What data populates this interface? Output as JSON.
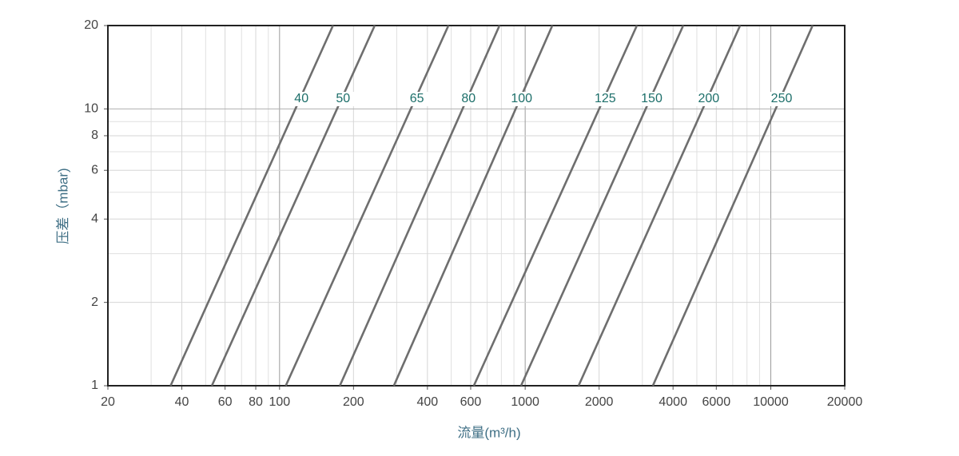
{
  "chart_data": {
    "type": "line",
    "xlabel": "流量(m³/h)",
    "ylabel": "压差（mbar)",
    "xscale": "log",
    "yscale": "log",
    "grid": true,
    "xlim": [
      20,
      20000
    ],
    "ylim": [
      1,
      20
    ],
    "xticks": [
      20,
      40,
      60,
      80,
      100,
      200,
      400,
      600,
      1000,
      2000,
      4000,
      6000,
      10000,
      20000
    ],
    "xminor": [
      30,
      50,
      70,
      90,
      300,
      500,
      700,
      800,
      900,
      3000,
      5000,
      7000,
      8000,
      9000
    ],
    "yticks": [
      1,
      2,
      4,
      6,
      8,
      10,
      20
    ],
    "yminor": [
      3,
      5,
      7,
      9
    ],
    "series": [
      {
        "name": "40",
        "color": "#6e6e6e",
        "x": [
          36,
          165
        ],
        "values": [
          1,
          20
        ]
      },
      {
        "name": "50",
        "color": "#6e6e6e",
        "x": [
          53,
          244
        ],
        "values": [
          1,
          20
        ]
      },
      {
        "name": "65",
        "color": "#6e6e6e",
        "x": [
          106,
          487
        ],
        "values": [
          1,
          20
        ]
      },
      {
        "name": "80",
        "color": "#6e6e6e",
        "x": [
          176,
          786
        ],
        "values": [
          1,
          20
        ]
      },
      {
        "name": "100",
        "color": "#6e6e6e",
        "x": [
          292,
          1290
        ],
        "values": [
          1,
          20
        ]
      },
      {
        "name": "125",
        "color": "#6e6e6e",
        "x": [
          618,
          2850
        ],
        "values": [
          1,
          20
        ]
      },
      {
        "name": "150",
        "color": "#6e6e6e",
        "x": [
          962,
          4400
        ],
        "values": [
          1,
          20
        ]
      },
      {
        "name": "200",
        "color": "#6e6e6e",
        "x": [
          1650,
          7500
        ],
        "values": [
          1,
          20
        ]
      },
      {
        "name": "250",
        "color": "#6e6e6e",
        "x": [
          3310,
          14800
        ],
        "values": [
          1,
          20
        ]
      }
    ]
  }
}
